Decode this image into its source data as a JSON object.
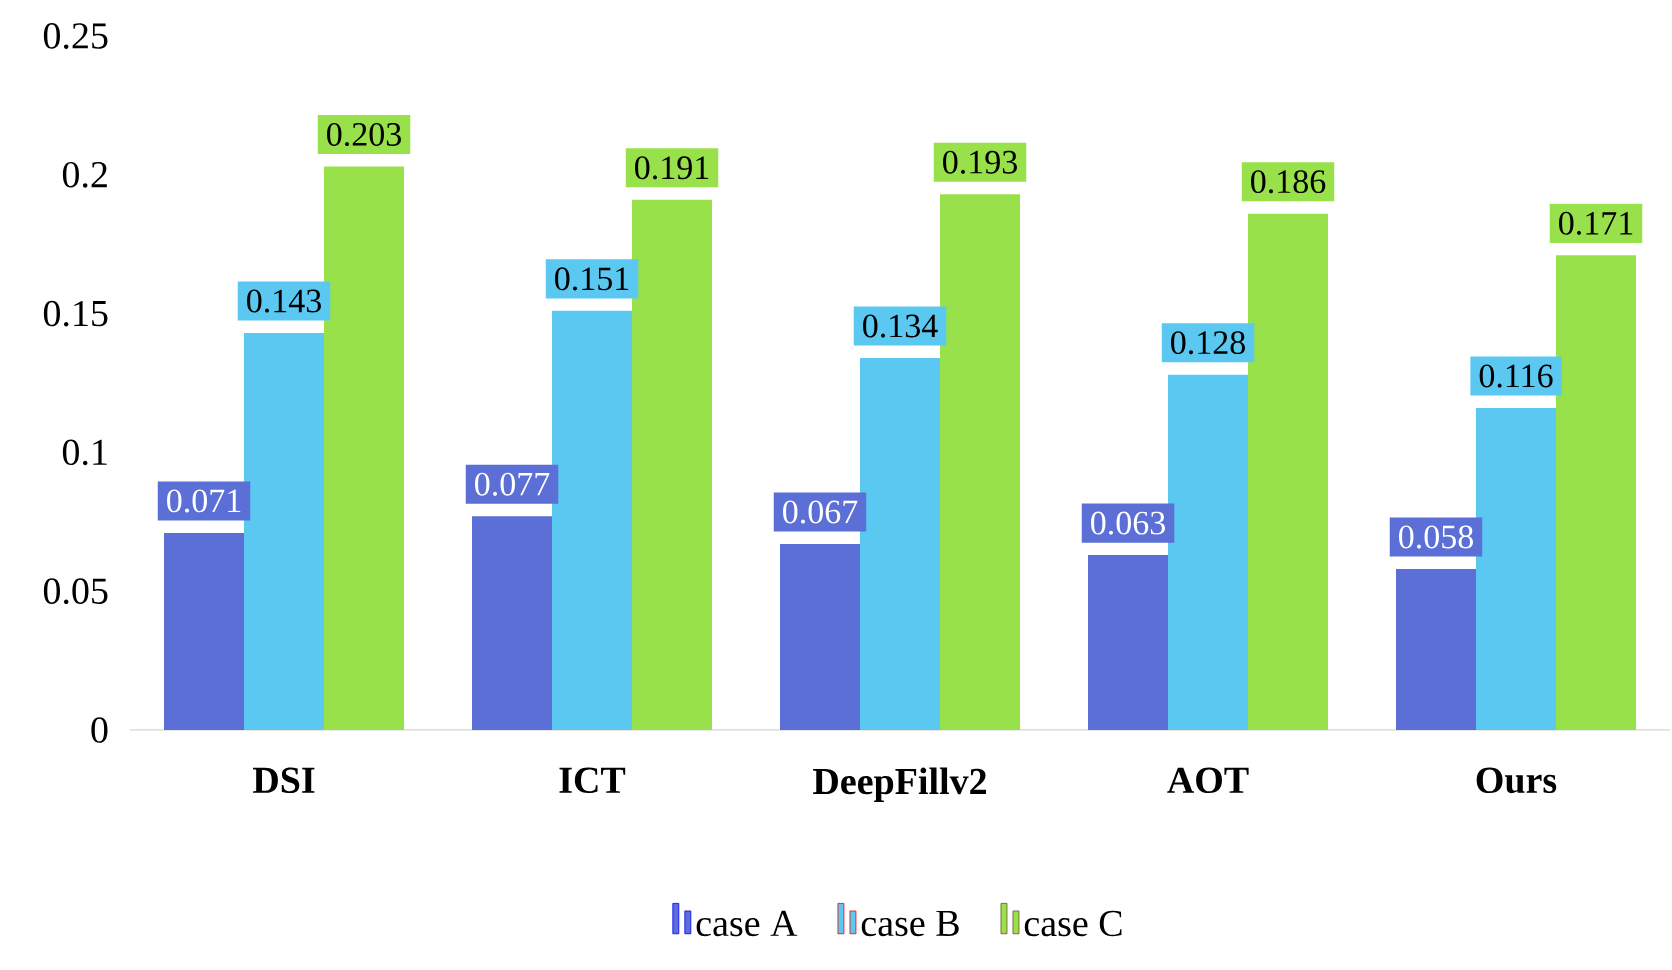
{
  "chart_data": {
    "type": "bar",
    "categories": [
      "DSI",
      "ICT",
      "DeepFillv2",
      "AOT",
      "Ours"
    ],
    "series": [
      {
        "name": "case A",
        "color": "#5b6fd6",
        "values": [
          0.071,
          0.077,
          0.067,
          0.063,
          0.058
        ]
      },
      {
        "name": "case B",
        "color": "#5ac8f0",
        "values": [
          0.143,
          0.151,
          0.134,
          0.128,
          0.116
        ]
      },
      {
        "name": "case C",
        "color": "#99e14a",
        "values": [
          0.203,
          0.191,
          0.193,
          0.186,
          0.171
        ]
      }
    ],
    "ylim": [
      0,
      0.25
    ],
    "yticks": [
      0,
      0.05,
      0.1,
      0.15,
      0.2,
      0.25
    ],
    "grid": false,
    "legend": "bottom",
    "data_labels": true
  }
}
